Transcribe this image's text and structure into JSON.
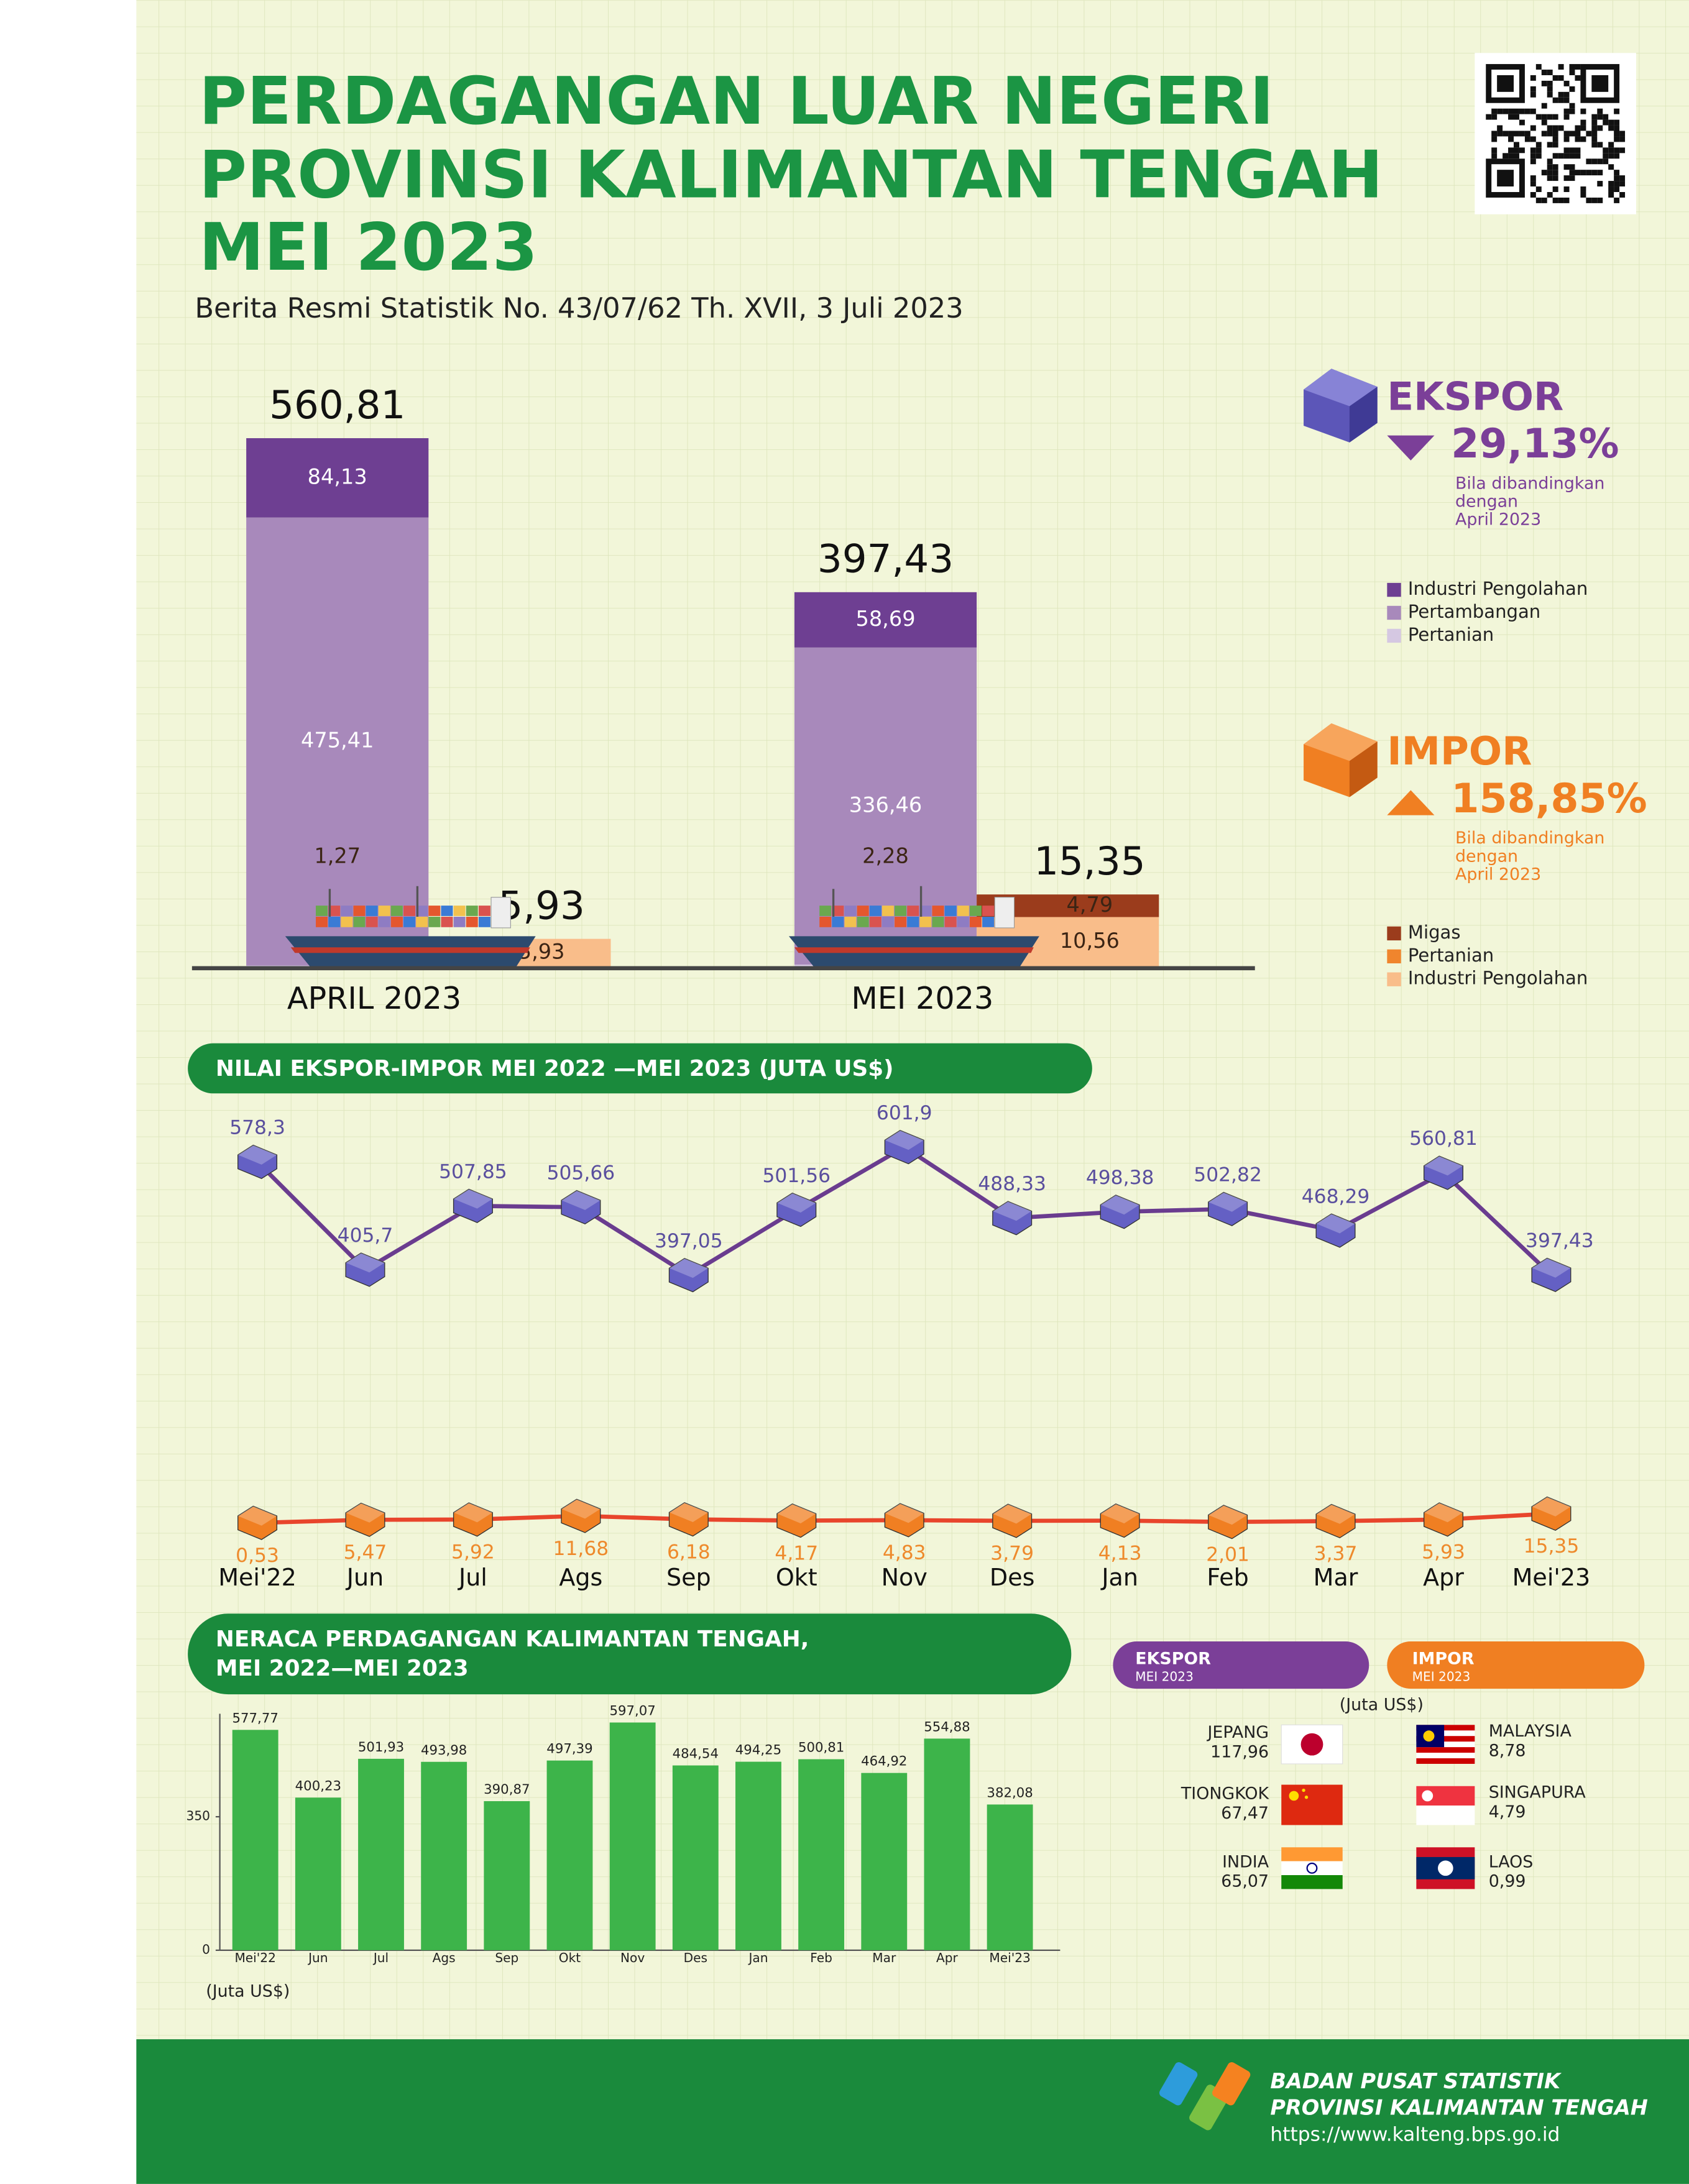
{
  "header": {
    "title_lines": [
      "PERDAGANGAN LUAR NEGERI",
      "PROVINSI KALIMANTAN TENGAH",
      "MEI 2023"
    ],
    "subtitle": "Berita Resmi Statistik No. 43/07/62 Th. XVII, 3 Juli 2023"
  },
  "summary": {
    "ekspor": {
      "label": "EKSPOR",
      "change": "29,13%",
      "note": [
        "Bila dibandingkan",
        "dengan",
        "April 2023"
      ]
    },
    "impor": {
      "label": "IMPOR",
      "change": "158,85%",
      "note": [
        "Bila dibandingkan",
        "dengan",
        "April 2023"
      ]
    }
  },
  "chart_data": [
    {
      "type": "bar",
      "stacked": true,
      "categories": [
        "APRIL 2023",
        "MEI 2023"
      ],
      "ylim": [
        0,
        600
      ],
      "y2lim": [
        0,
        120
      ],
      "series": [
        {
          "name": "Pertanian",
          "color": "#d5c8e2",
          "values": [
            1.27,
            2.28
          ],
          "value_labels": [
            "1,27",
            "2,28"
          ]
        },
        {
          "name": "Pertambangan",
          "color": "#a889bb",
          "values": [
            475.41,
            336.46
          ],
          "value_labels": [
            "475,41",
            "336,46"
          ]
        },
        {
          "name": "Industri Pengolahan",
          "color": "#6e3f92",
          "values": [
            84.13,
            58.69
          ],
          "value_labels": [
            "84,13",
            "58,69"
          ]
        },
        {
          "name": "Industri Pengolahan",
          "color": "#f9bd8a",
          "axis": "y2",
          "values": [
            5.93,
            10.56
          ],
          "value_labels": [
            "5,93",
            "10,56"
          ]
        },
        {
          "name": "Pertanian",
          "color": "#f0852d",
          "axis": "y2",
          "values": [
            0,
            0
          ]
        },
        {
          "name": "Migas",
          "color": "#9b3c1c",
          "axis": "y2",
          "values": [
            0,
            4.79
          ],
          "value_labels": [
            null,
            "4,79"
          ]
        }
      ],
      "totals": [
        {
          "values": [
            560.81,
            397.43
          ],
          "value_labels": [
            "560,81",
            "397,43"
          ]
        },
        {
          "axis": "y2",
          "values": [
            5.93,
            15.35
          ],
          "value_labels": [
            "5,93",
            "15,35"
          ]
        }
      ]
    },
    {
      "type": "line",
      "title": "NILAI EKSPOR-IMPOR MEI 2022 —MEI 2023 (JUTA US$)",
      "categories": [
        "Mei'22",
        "Jun",
        "Jul",
        "Ags",
        "Sep",
        "Okt",
        "Nov",
        "Des",
        "Jan",
        "Feb",
        "Mar",
        "Apr",
        "Mei'23"
      ],
      "ylim": [
        0,
        650
      ],
      "series": [
        {
          "name": "EKSPOR",
          "color": "#6a3c8f",
          "marker_color": "#6460c4",
          "label_color": "#5a4f9e",
          "values": [
            578.3,
            405.7,
            507.85,
            505.66,
            397.05,
            501.56,
            601.9,
            488.33,
            498.38,
            502.82,
            468.29,
            560.81,
            397.43
          ],
          "value_labels": [
            "578,3",
            "405,7",
            "507,85",
            "505,66",
            "397,05",
            "501,56",
            "601,9",
            "488,33",
            "498,38",
            "502,82",
            "468,29",
            "560,81",
            "397,43"
          ]
        },
        {
          "name": "IMPOR",
          "color": "#e8452c",
          "marker_color": "#f07f22",
          "label_color": "#ee8a2c",
          "values": [
            0.53,
            5.47,
            5.92,
            11.68,
            6.18,
            4.17,
            4.83,
            3.79,
            4.13,
            2.01,
            3.37,
            5.93,
            15.35
          ],
          "value_labels": [
            "0,53",
            "5,47",
            "5,92",
            "11,68",
            "6,18",
            "4,17",
            "4,83",
            "3,79",
            "4,13",
            "2,01",
            "3,37",
            "5,93",
            "15,35"
          ]
        }
      ]
    },
    {
      "type": "bar",
      "title_lines": [
        "NERACA PERDAGANGAN KALIMANTAN TENGAH,",
        "MEI 2022—MEI 2023"
      ],
      "ylabel": "(Juta US$)",
      "categories": [
        "Mei'22",
        "Jun",
        "Jul",
        "Ags",
        "Sep",
        "Okt",
        "Nov",
        "Des",
        "Jan",
        "Feb",
        "Mar",
        "Apr",
        "Mei'23"
      ],
      "values": [
        577.77,
        400.23,
        501.93,
        493.98,
        390.87,
        497.39,
        597.07,
        484.54,
        494.25,
        500.81,
        464.92,
        554.88,
        382.08
      ],
      "value_labels": [
        "577,77",
        "400,23",
        "501,93",
        "493,98",
        "390,87",
        "497,39",
        "597,07",
        "484,54",
        "494,25",
        "500,81",
        "464,92",
        "554,88",
        "382,08"
      ],
      "color": "#3db44a",
      "ylim": [
        0,
        620
      ],
      "yticks": [
        0,
        350
      ]
    }
  ],
  "trade_partners": {
    "unit": "(Juta US$)",
    "ekspor": {
      "label": "EKSPOR",
      "period": "MEI 2023",
      "countries": [
        {
          "name": "JEPANG",
          "value": "117,96"
        },
        {
          "name": "TIONGKOK",
          "value": "67,47"
        },
        {
          "name": "INDIA",
          "value": "65,07"
        }
      ]
    },
    "impor": {
      "label": "IMPOR",
      "period": "MEI 2023",
      "countries": [
        {
          "name": "MALAYSIA",
          "value": "8,78"
        },
        {
          "name": "SINGAPURA",
          "value": "4,79"
        },
        {
          "name": "LAOS",
          "value": "0,99"
        }
      ]
    }
  },
  "footer": {
    "org_lines": [
      "BADAN PUSAT STATISTIK",
      "PROVINSI KALIMANTAN TENGAH"
    ],
    "url": "https://www.kalteng.bps.go.id"
  }
}
